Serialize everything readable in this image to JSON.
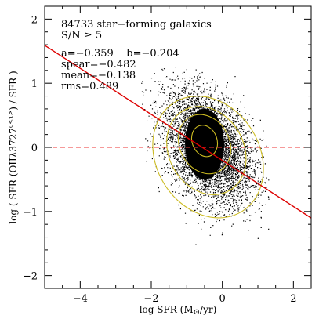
{
  "chart_data": {
    "type": "scatter",
    "xlabel": "log SFR (M⊙/yr)",
    "ylabel": "log ( SFR (OIIλ3727^{c<τ>}) / SFR )",
    "xlim": [
      -5,
      2.5
    ],
    "ylim": [
      -2.2,
      2.2
    ],
    "x_ticks": [
      -4,
      -2,
      0,
      2
    ],
    "y_ticks": [
      -2,
      -1,
      0,
      1,
      2
    ],
    "grid": false,
    "annotations": [
      "84733 star−forming galaxics",
      "S/N ≥ 5",
      "a=−0.359    b=−0.204",
      "spear=−0.482",
      "mean=−0.138",
      "rms=0.489"
    ],
    "fit_line": {
      "slope": -0.359,
      "intercept": -0.204,
      "color": "#dd0000"
    },
    "reference_line": {
      "y": 0,
      "color": "#ee3333",
      "style": "dashed"
    },
    "point_cloud": {
      "count": 84733,
      "center": [
        -0.4,
        0.0
      ],
      "x_range": [
        -2.3,
        1.3
      ],
      "y_range": [
        -1.6,
        1.3
      ],
      "color": "#000000"
    },
    "contour_color": "#ccbb22"
  }
}
